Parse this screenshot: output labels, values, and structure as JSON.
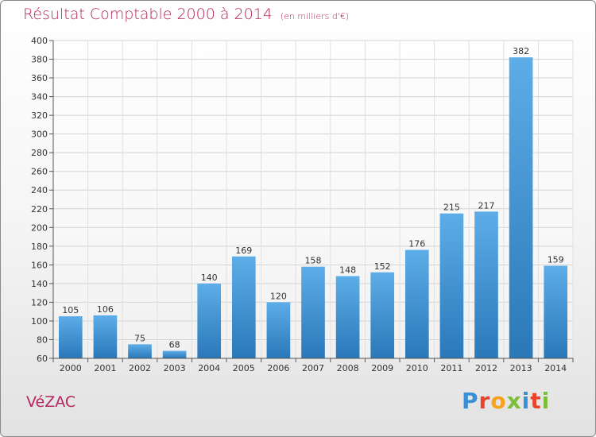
{
  "title": "Résultat Comptable 2000 à 2014",
  "subtitle": "(en milliers d'€)",
  "commune": "VéZAC",
  "logo": {
    "letters": [
      "P",
      "r",
      "o",
      "x",
      "i",
      "t",
      "i"
    ],
    "colors": [
      "#3a8fd6",
      "#e8452c",
      "#f6a21d",
      "#7cbd3a",
      "#3a8fd6",
      "#e8452c",
      "#7cbd3a"
    ]
  },
  "colors": {
    "accent": "#b5265d",
    "bar_top": "#5dade8",
    "bar_bottom": "#2a78b8"
  },
  "chart_data": {
    "type": "bar",
    "categories": [
      "2000",
      "2001",
      "2002",
      "2003",
      "2004",
      "2005",
      "2006",
      "2007",
      "2008",
      "2009",
      "2010",
      "2011",
      "2012",
      "2013",
      "2014"
    ],
    "values": [
      105,
      106,
      75,
      68,
      140,
      169,
      120,
      158,
      148,
      152,
      176,
      215,
      217,
      382,
      159
    ],
    "ylim": [
      60,
      400
    ],
    "yticks": [
      60,
      80,
      100,
      120,
      140,
      160,
      180,
      200,
      220,
      240,
      260,
      280,
      300,
      320,
      340,
      360,
      380,
      400
    ],
    "grid": true
  }
}
